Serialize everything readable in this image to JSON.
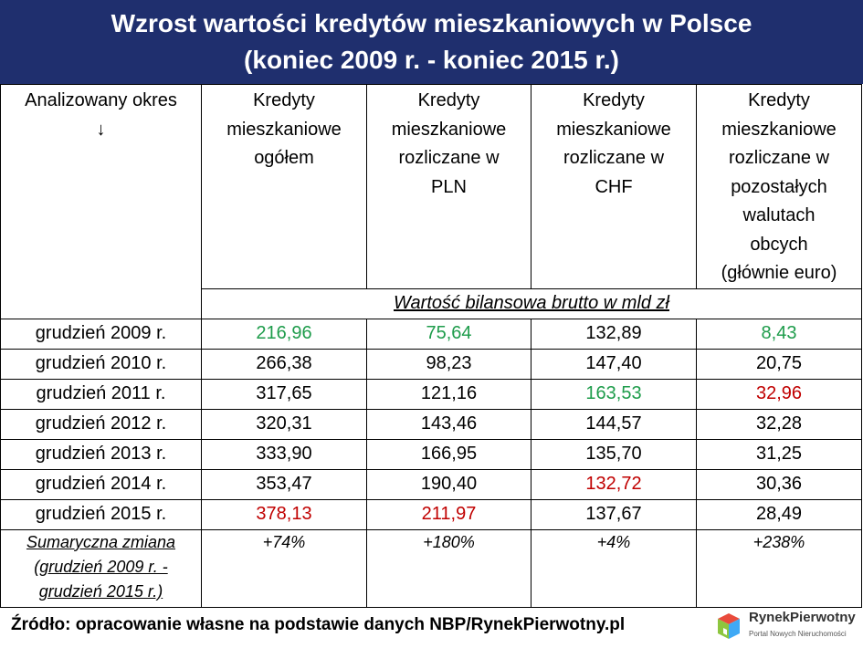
{
  "header": {
    "title": [
      "Wzrost wartości kredytów mieszkaniowych w Polsce",
      "(koniec 2009 r. - koniec 2015 r.)"
    ]
  },
  "table": {
    "columns": [
      [
        "Analizowany okres",
        "↓"
      ],
      [
        "Kredyty",
        "mieszkaniowe",
        "ogółem"
      ],
      [
        "Kredyty",
        "mieszkaniowe",
        "rozliczane w",
        "PLN"
      ],
      [
        "Kredyty",
        "mieszkaniowe",
        "rozliczane w",
        "CHF"
      ],
      [
        "Kredyty",
        "mieszkaniowe",
        "rozliczane w",
        "pozostałych",
        "walutach",
        "obcych",
        "(głównie euro)"
      ]
    ],
    "unit": "Wartość bilansowa brutto w mld zł",
    "rows": [
      [
        "grudzień 2009 r.",
        "216,96",
        "75,64",
        "132,89",
        "8,43"
      ],
      [
        "grudzień 2010 r.",
        "266,38",
        "98,23",
        "147,40",
        "20,75"
      ],
      [
        "grudzień 2011 r.",
        "317,65",
        "121,16",
        "163,53",
        "32,96"
      ],
      [
        "grudzień 2012 r.",
        "320,31",
        "143,46",
        "144,57",
        "32,28"
      ],
      [
        "grudzień 2013 r.",
        "333,90",
        "166,95",
        "135,70",
        "31,25"
      ],
      [
        "grudzień 2014 r.",
        "353,47",
        "190,40",
        "132,72",
        "30,36"
      ],
      [
        "grudzień 2015 r.",
        "378,13",
        "211,97",
        "137,67",
        "28,49"
      ]
    ],
    "summary": {
      "label": [
        "Sumaryczna zmiana",
        "(grudzień 2009 r. -",
        "grudzień 2015 r.)"
      ],
      "values": [
        "+74%",
        "+180%",
        "+4%",
        "+238%"
      ]
    }
  },
  "footer": {
    "source": "Źródło: opracowanie własne na podstawie danych NBP/RynekPierwotny.pl",
    "logo": {
      "name": "RynekPierwotny",
      "tagline": "Portal Nowych Nieruchomości"
    }
  }
}
